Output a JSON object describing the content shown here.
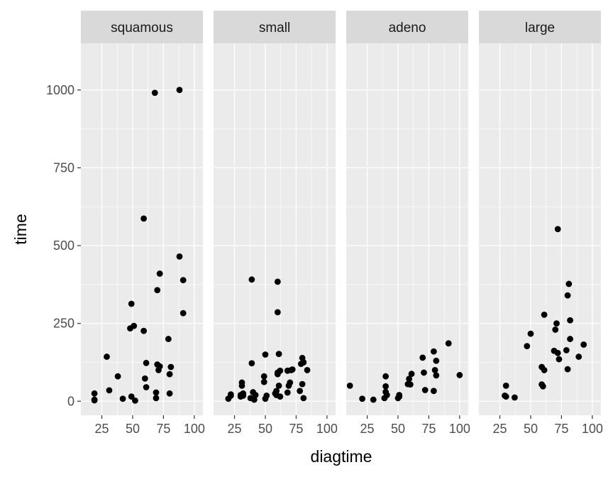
{
  "chart_data": {
    "type": "scatter",
    "xlabel": "diagtime",
    "ylabel": "time",
    "xlim": [
      8,
      107
    ],
    "ylim": [
      -45,
      1150
    ],
    "x_ticks": [
      25,
      50,
      75,
      100
    ],
    "x_tick_labels": [
      "25",
      "50",
      "75",
      "100"
    ],
    "y_ticks": [
      0,
      250,
      500,
      750,
      1000
    ],
    "y_tick_labels": [
      "0",
      "250",
      "500",
      "750",
      "1000"
    ],
    "grid": true,
    "colors": {
      "panel_bg": "#ebebeb",
      "strip_bg": "#d9d9d9",
      "grid_major": "#ffffff",
      "point": "#000000",
      "tick": "#333333"
    },
    "panels": [
      {
        "strip": "squamous",
        "points": [
          [
            19,
            25
          ],
          [
            19,
            5
          ],
          [
            19,
            3
          ],
          [
            29,
            143
          ],
          [
            31,
            35
          ],
          [
            38,
            80
          ],
          [
            42,
            8
          ],
          [
            48,
            234
          ],
          [
            49,
            313
          ],
          [
            49,
            15
          ],
          [
            51,
            242
          ],
          [
            52,
            2
          ],
          [
            59,
            226
          ],
          [
            59,
            587
          ],
          [
            60,
            73
          ],
          [
            61,
            123
          ],
          [
            61,
            45
          ],
          [
            68,
            991
          ],
          [
            69,
            28
          ],
          [
            69,
            10
          ],
          [
            70,
            357
          ],
          [
            70,
            118
          ],
          [
            71,
            100
          ],
          [
            72,
            410
          ],
          [
            72,
            112
          ],
          [
            79,
            200
          ],
          [
            80,
            87
          ],
          [
            80,
            25
          ],
          [
            81,
            110
          ],
          [
            88,
            1000
          ],
          [
            88,
            465
          ],
          [
            91,
            389
          ],
          [
            91,
            283
          ]
        ]
      },
      {
        "strip": "small",
        "points": [
          [
            20,
            8
          ],
          [
            22,
            18
          ],
          [
            22,
            22
          ],
          [
            30,
            15
          ],
          [
            30,
            20
          ],
          [
            31,
            60
          ],
          [
            31,
            50
          ],
          [
            32,
            25
          ],
          [
            32,
            18
          ],
          [
            38,
            10
          ],
          [
            39,
            122
          ],
          [
            39,
            391
          ],
          [
            40,
            29
          ],
          [
            41,
            5
          ],
          [
            42,
            20
          ],
          [
            49,
            62
          ],
          [
            49,
            80
          ],
          [
            50,
            150
          ],
          [
            50,
            8
          ],
          [
            51,
            18
          ],
          [
            58,
            25
          ],
          [
            59,
            33
          ],
          [
            59,
            20
          ],
          [
            60,
            92
          ],
          [
            60,
            87
          ],
          [
            60,
            384
          ],
          [
            60,
            286
          ],
          [
            61,
            152
          ],
          [
            61,
            50
          ],
          [
            62,
            98
          ],
          [
            62,
            15
          ],
          [
            68,
            28
          ],
          [
            68,
            98
          ],
          [
            69,
            50
          ],
          [
            70,
            60
          ],
          [
            71,
            100
          ],
          [
            72,
            102
          ],
          [
            78,
            33
          ],
          [
            79,
            120
          ],
          [
            80,
            139
          ],
          [
            80,
            55
          ],
          [
            81,
            10
          ],
          [
            81,
            125
          ],
          [
            84,
            100
          ]
        ]
      },
      {
        "strip": "adeno",
        "points": [
          [
            11,
            50
          ],
          [
            21,
            8
          ],
          [
            30,
            5
          ],
          [
            39,
            10
          ],
          [
            40,
            30
          ],
          [
            40,
            48
          ],
          [
            40,
            80
          ],
          [
            41,
            20
          ],
          [
            50,
            10
          ],
          [
            51,
            15
          ],
          [
            51,
            20
          ],
          [
            58,
            55
          ],
          [
            59,
            72
          ],
          [
            60,
            54
          ],
          [
            61,
            88
          ],
          [
            70,
            140
          ],
          [
            71,
            92
          ],
          [
            72,
            36
          ],
          [
            79,
            33
          ],
          [
            79,
            160
          ],
          [
            80,
            100
          ],
          [
            81,
            83
          ],
          [
            81,
            130
          ],
          [
            91,
            186
          ],
          [
            100,
            84
          ]
        ]
      },
      {
        "strip": "large",
        "points": [
          [
            29,
            18
          ],
          [
            30,
            50
          ],
          [
            30,
            15
          ],
          [
            37,
            12
          ],
          [
            47,
            177
          ],
          [
            50,
            217
          ],
          [
            59,
            54
          ],
          [
            59,
            110
          ],
          [
            60,
            48
          ],
          [
            61,
            100
          ],
          [
            61,
            278
          ],
          [
            69,
            162
          ],
          [
            70,
            230
          ],
          [
            71,
            250
          ],
          [
            72,
            553
          ],
          [
            72,
            155
          ],
          [
            73,
            135
          ],
          [
            79,
            164
          ],
          [
            80,
            340
          ],
          [
            80,
            103
          ],
          [
            81,
            377
          ],
          [
            82,
            200
          ],
          [
            82,
            260
          ],
          [
            89,
            143
          ],
          [
            93,
            182
          ]
        ]
      }
    ]
  }
}
